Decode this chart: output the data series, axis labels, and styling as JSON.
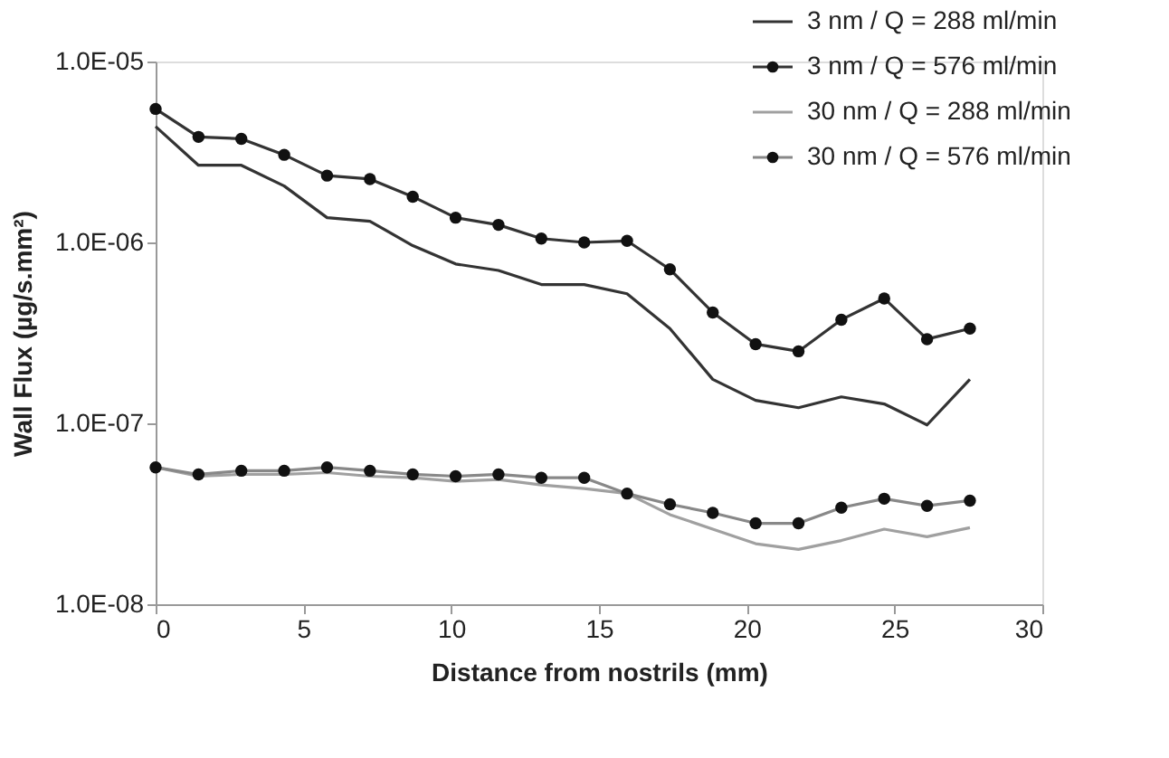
{
  "chart_data": {
    "type": "line",
    "xlabel": "Distance from nostrils (mm)",
    "ylabel": "Wall Flux (µg/s.mm²)",
    "x": [
      0,
      1.45,
      2.9,
      4.35,
      5.8,
      7.25,
      8.7,
      10.15,
      11.6,
      13.05,
      14.5,
      15.95,
      17.4,
      18.85,
      20.3,
      21.75,
      23.2,
      24.65,
      26.1,
      27.55
    ],
    "series": [
      {
        "name": "3 nm / Q = 288 ml/min",
        "color": "#333333",
        "marker": "none",
        "values": [
          4.37e-06,
          2.67e-06,
          2.67e-06,
          2.05e-06,
          1.37e-06,
          1.31e-06,
          9.6e-07,
          7.6e-07,
          7e-07,
          5.85e-07,
          5.85e-07,
          5.2e-07,
          3.34e-07,
          1.75e-07,
          1.34e-07,
          1.22e-07,
          1.4e-07,
          1.28e-07,
          9.8e-08,
          1.75e-07
        ]
      },
      {
        "name": "3 nm / Q = 576 ml/min",
        "color": "#333333",
        "marker": "circle",
        "values": [
          5.47e-06,
          3.83e-06,
          3.74e-06,
          3.05e-06,
          2.34e-06,
          2.24e-06,
          1.79e-06,
          1.37e-06,
          1.25e-06,
          1.05e-06,
          1e-06,
          1.02e-06,
          7.1e-07,
          4.1e-07,
          2.74e-07,
          2.5e-07,
          3.74e-07,
          4.9e-07,
          2.92e-07,
          3.34e-07
        ]
      },
      {
        "name": "30 nm / Q = 288 ml/min",
        "color": "#a0a0a0",
        "marker": "none",
        "values": [
          5.71e-08,
          5.1e-08,
          5.22e-08,
          5.22e-08,
          5.34e-08,
          5.1e-08,
          5e-08,
          4.78e-08,
          4.89e-08,
          4.56e-08,
          4.36e-08,
          4.09e-08,
          3.13e-08,
          2.6e-08,
          2.16e-08,
          2.01e-08,
          2.25e-08,
          2.6e-08,
          2.36e-08,
          2.65e-08
        ]
      },
      {
        "name": "30 nm / Q = 576 ml/min",
        "color": "#888888",
        "marker": "circle",
        "values": [
          5.71e-08,
          5.22e-08,
          5.47e-08,
          5.47e-08,
          5.71e-08,
          5.47e-08,
          5.22e-08,
          5.1e-08,
          5.22e-08,
          5e-08,
          5e-08,
          4.09e-08,
          3.57e-08,
          3.2e-08,
          2.8e-08,
          2.8e-08,
          3.42e-08,
          3.83e-08,
          3.5e-08,
          3.74e-08
        ]
      }
    ],
    "log": "y",
    "xlim": [
      0,
      30
    ],
    "xticks": [
      0,
      5,
      10,
      15,
      20,
      25,
      30
    ],
    "ylim": [
      1e-08,
      1e-05
    ],
    "yticks": [
      {
        "value": 1e-08,
        "label": "1.0E-08"
      },
      {
        "value": 1e-07,
        "label": "1.0E-07"
      },
      {
        "value": 1e-06,
        "label": "1.0E-06"
      },
      {
        "value": 1e-05,
        "label": "1.0E-05"
      }
    ],
    "grid": false,
    "legend": "top right"
  }
}
